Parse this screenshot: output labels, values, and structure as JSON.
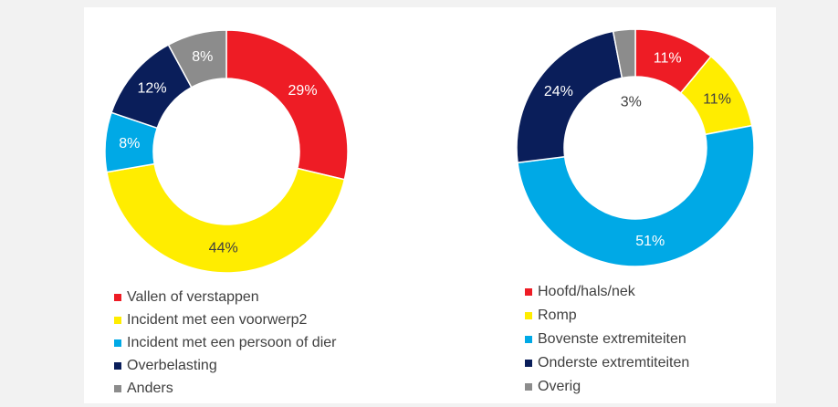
{
  "chart_data": [
    {
      "type": "donut",
      "categories": [
        "Vallen of verstappen",
        "Incident met een voorwerp2",
        "Incident met een persoon of dier",
        "Overbelasting",
        "Anders"
      ],
      "values": [
        29,
        44,
        8,
        12,
        8
      ],
      "value_labels": [
        "29%",
        "44%",
        "8%",
        "12%",
        "8%"
      ],
      "colors": [
        "#ee1c25",
        "#ffed00",
        "#00a9e6",
        "#0a1e5a",
        "#8c8c8c"
      ]
    },
    {
      "type": "donut",
      "categories": [
        "Hoofd/hals/nek",
        "Romp",
        "Bovenste extremiteiten",
        "Onderste extremtiteiten",
        "Overig"
      ],
      "values": [
        11,
        11,
        51,
        24,
        3
      ],
      "value_labels": [
        "11%",
        "11%",
        "51%",
        "24%",
        "3%"
      ],
      "colors": [
        "#ee1c25",
        "#ffed00",
        "#00a9e6",
        "#0a1e5a",
        "#8c8c8c"
      ]
    }
  ]
}
